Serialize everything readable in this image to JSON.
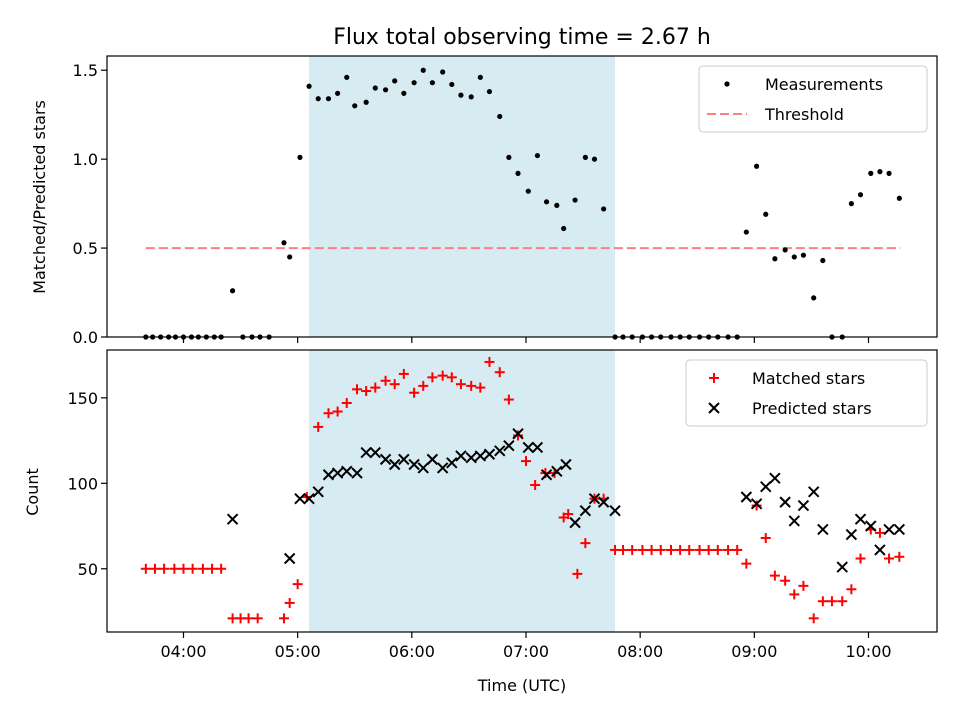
{
  "chart_data": [
    {
      "type": "scatter",
      "title": "Flux total observing time = 2.67 h",
      "ylabel": "Matched/Predicted stars",
      "xlabel": "",
      "xlim": [
        3.33,
        10.6
      ],
      "ylim": [
        0,
        1.58
      ],
      "yticks": [
        0,
        0.5,
        1.0,
        1.5
      ],
      "ytick_labels": [
        "0.0",
        "0.5",
        "1.0",
        "1.5"
      ],
      "grid": false,
      "legend": "top-right",
      "shaded_span": {
        "x0": 5.1,
        "x1": 7.78,
        "color": "#add8e6"
      },
      "threshold": {
        "name": "Threshold",
        "y": 0.5,
        "x0": 3.67,
        "x1": 10.28,
        "color": "#ff7f7f"
      },
      "series": [
        {
          "name": "Measurements",
          "color": "#000000",
          "x": [
            3.67,
            3.73,
            3.8,
            3.87,
            3.93,
            4.0,
            4.07,
            4.13,
            4.2,
            4.27,
            4.33,
            4.43,
            4.52,
            4.6,
            4.67,
            4.75,
            4.88,
            4.93,
            5.02,
            5.1,
            5.18,
            5.27,
            5.35,
            5.43,
            5.5,
            5.6,
            5.68,
            5.77,
            5.85,
            5.93,
            6.02,
            6.1,
            6.18,
            6.27,
            6.35,
            6.43,
            6.52,
            6.6,
            6.68,
            6.77,
            6.85,
            6.93,
            7.02,
            7.1,
            7.18,
            7.27,
            7.33,
            7.43,
            7.52,
            7.6,
            7.68,
            7.78,
            7.85,
            7.93,
            8.02,
            8.1,
            8.18,
            8.27,
            8.35,
            8.43,
            8.52,
            8.6,
            8.68,
            8.77,
            8.85,
            8.93,
            9.02,
            9.1,
            9.18,
            9.27,
            9.35,
            9.43,
            9.52,
            9.6,
            9.68,
            9.77,
            9.85,
            9.93,
            10.02,
            10.1,
            10.18,
            10.27
          ],
          "y": [
            0,
            0,
            0,
            0,
            0,
            0,
            0,
            0,
            0,
            0,
            0,
            0.26,
            0,
            0,
            0,
            0,
            0.53,
            0.45,
            1.01,
            1.41,
            1.34,
            1.34,
            1.37,
            1.46,
            1.3,
            1.32,
            1.4,
            1.39,
            1.44,
            1.37,
            1.43,
            1.5,
            1.43,
            1.49,
            1.42,
            1.36,
            1.35,
            1.46,
            1.38,
            1.24,
            1.01,
            0.92,
            0.82,
            1.02,
            0.76,
            0.74,
            0.61,
            0.77,
            1.01,
            1.0,
            0.72,
            0,
            0,
            0,
            0,
            0,
            0,
            0,
            0,
            0,
            0,
            0,
            0,
            0,
            0,
            0.59,
            0.96,
            0.69,
            0.44,
            0.49,
            0.45,
            0.46,
            0.22,
            0.43,
            0,
            0,
            0.75,
            0.8,
            0.92,
            0.93,
            0.92,
            0.78
          ]
        }
      ]
    },
    {
      "type": "scatter",
      "title": "",
      "ylabel": "Count",
      "xlabel": "Time (UTC)",
      "xlim": [
        3.33,
        10.6
      ],
      "ylim": [
        13,
        178
      ],
      "yticks": [
        50,
        100,
        150
      ],
      "ytick_labels": [
        "50",
        "100",
        "150"
      ],
      "xticks": [
        4,
        5,
        6,
        7,
        8,
        9,
        10
      ],
      "xtick_labels": [
        "04:00",
        "05:00",
        "06:00",
        "07:00",
        "08:00",
        "09:00",
        "10:00"
      ],
      "grid": false,
      "legend": "top-right",
      "shaded_span": {
        "x0": 5.1,
        "x1": 7.78,
        "color": "#add8e6"
      },
      "series": [
        {
          "name": "Matched stars",
          "marker": "plus",
          "color": "#ff0000",
          "x": [
            3.67,
            3.75,
            3.83,
            3.92,
            4.0,
            4.08,
            4.17,
            4.25,
            4.33,
            4.43,
            4.5,
            4.57,
            4.65,
            4.88,
            4.93,
            5.0,
            5.08,
            5.18,
            5.27,
            5.35,
            5.43,
            5.52,
            5.6,
            5.68,
            5.77,
            5.85,
            5.93,
            6.02,
            6.1,
            6.18,
            6.27,
            6.35,
            6.43,
            6.52,
            6.6,
            6.68,
            6.77,
            6.85,
            6.93,
            7.0,
            7.08,
            7.17,
            7.25,
            7.33,
            7.37,
            7.45,
            7.52,
            7.6,
            7.68,
            7.78,
            7.85,
            7.93,
            8.02,
            8.1,
            8.18,
            8.27,
            8.35,
            8.43,
            8.52,
            8.6,
            8.68,
            8.77,
            8.85,
            8.93,
            9.02,
            9.1,
            9.18,
            9.27,
            9.35,
            9.43,
            9.52,
            9.6,
            9.68,
            9.77,
            9.85,
            9.93,
            10.02,
            10.1,
            10.18,
            10.27
          ],
          "y": [
            50,
            50,
            50,
            50,
            50,
            50,
            50,
            50,
            50,
            21,
            21,
            21,
            21,
            21,
            30,
            41,
            92,
            133,
            141,
            142,
            147,
            155,
            154,
            156,
            160,
            158,
            164,
            153,
            157,
            162,
            163,
            162,
            158,
            157,
            156,
            171,
            165,
            149,
            128,
            113,
            99,
            106,
            106,
            80,
            82,
            47,
            65,
            91,
            91,
            61,
            61,
            61,
            61,
            61,
            61,
            61,
            61,
            61,
            61,
            61,
            61,
            61,
            61,
            53,
            87,
            68,
            46,
            43,
            35,
            40,
            21,
            31,
            31,
            31,
            38,
            56,
            73,
            71,
            56,
            57
          ]
        },
        {
          "name": "Predicted stars",
          "marker": "x",
          "color": "#000000",
          "x": [
            4.43,
            4.93,
            5.02,
            5.1,
            5.18,
            5.27,
            5.35,
            5.43,
            5.52,
            5.6,
            5.68,
            5.77,
            5.85,
            5.93,
            6.02,
            6.1,
            6.18,
            6.27,
            6.35,
            6.43,
            6.52,
            6.6,
            6.68,
            6.77,
            6.85,
            6.93,
            7.02,
            7.1,
            7.18,
            7.27,
            7.35,
            7.43,
            7.52,
            7.6,
            7.68,
            7.78,
            8.93,
            9.02,
            9.1,
            9.18,
            9.27,
            9.35,
            9.43,
            9.52,
            9.6,
            9.77,
            9.85,
            9.93,
            10.02,
            10.1,
            10.18,
            10.27
          ],
          "y": [
            79,
            56,
            91,
            91,
            95,
            105,
            106,
            107,
            106,
            118,
            118,
            114,
            111,
            114,
            111,
            109,
            114,
            109,
            112,
            116,
            115,
            116,
            117,
            119,
            122,
            129,
            121,
            121,
            105,
            107,
            111,
            77,
            84,
            91,
            89,
            84,
            92,
            88,
            98,
            103,
            89,
            78,
            87,
            95,
            73,
            51,
            70,
            79,
            75,
            61,
            73,
            73
          ]
        }
      ]
    }
  ]
}
